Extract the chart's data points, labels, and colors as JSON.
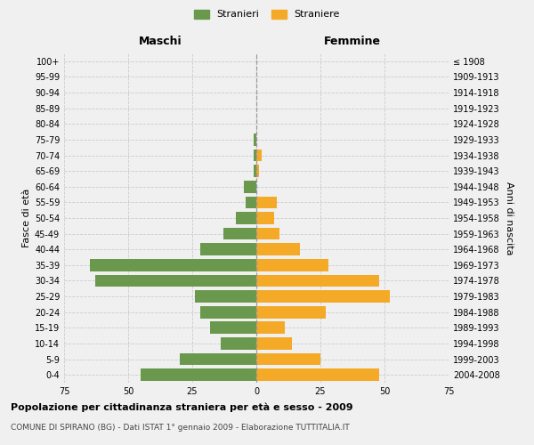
{
  "age_groups": [
    "0-4",
    "5-9",
    "10-14",
    "15-19",
    "20-24",
    "25-29",
    "30-34",
    "35-39",
    "40-44",
    "45-49",
    "50-54",
    "55-59",
    "60-64",
    "65-69",
    "70-74",
    "75-79",
    "80-84",
    "85-89",
    "90-94",
    "95-99",
    "100+"
  ],
  "birth_years": [
    "2004-2008",
    "1999-2003",
    "1994-1998",
    "1989-1993",
    "1984-1988",
    "1979-1983",
    "1974-1978",
    "1969-1973",
    "1964-1968",
    "1959-1963",
    "1954-1958",
    "1949-1953",
    "1944-1948",
    "1939-1943",
    "1934-1938",
    "1929-1933",
    "1924-1928",
    "1919-1923",
    "1914-1918",
    "1909-1913",
    "≤ 1908"
  ],
  "males": [
    45,
    30,
    14,
    18,
    22,
    24,
    63,
    65,
    22,
    13,
    8,
    4,
    5,
    1,
    1,
    1,
    0,
    0,
    0,
    0,
    0
  ],
  "females": [
    48,
    25,
    14,
    11,
    27,
    52,
    48,
    28,
    17,
    9,
    7,
    8,
    0,
    1,
    2,
    0,
    0,
    0,
    0,
    0,
    0
  ],
  "male_color": "#6a994e",
  "female_color": "#f4a927",
  "background_color": "#f0f0f0",
  "title": "Popolazione per cittadinanza straniera per età e sesso - 2009",
  "subtitle": "COMUNE DI SPIRANO (BG) - Dati ISTAT 1° gennaio 2009 - Elaborazione TUTTITALIA.IT",
  "ylabel_left": "Fasce di età",
  "ylabel_right": "Anni di nascita",
  "legend_male": "Stranieri",
  "legend_female": "Straniere",
  "xlim": 75,
  "maschi_label": "Maschi",
  "femmine_label": "Femmine"
}
